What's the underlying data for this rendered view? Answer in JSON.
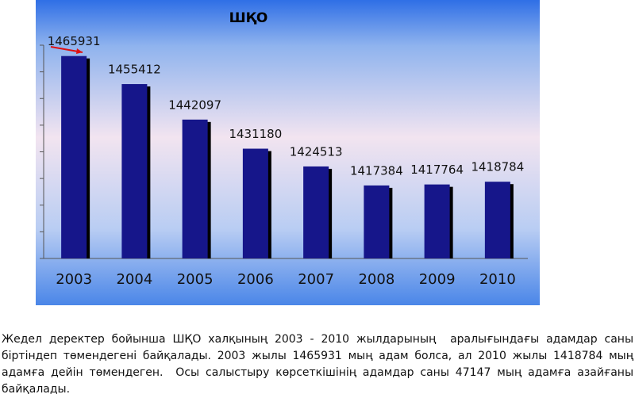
{
  "chart_data": {
    "type": "bar",
    "title": "ШҚО",
    "categories": [
      "2003",
      "2004",
      "2005",
      "2006",
      "2007",
      "2008",
      "2009",
      "2010"
    ],
    "values": [
      1465931,
      1455412,
      1442097,
      1431180,
      1424513,
      1417384,
      1417764,
      1418784
    ],
    "color": "#16168a",
    "ylim": [
      1390000,
      1470000
    ],
    "yticks": [
      1390000,
      1400000,
      1410000,
      1420000,
      1430000,
      1440000,
      1450000,
      1460000,
      1470000
    ]
  },
  "paragraph": "Жедел деректер бойынша ШҚО халқының 2003 - 2010 жылдарының  аралығындағы адамдар саны біртіндеп төмендегені байқалады. 2003 жылы 1465931 мың адам болса, ал 2010 жылы 1418784 мың адамға дейін төмендеген.  Осы салыстыру көрсеткішінің адамдар саны 47147 мың адамға азайғаны байқалады."
}
